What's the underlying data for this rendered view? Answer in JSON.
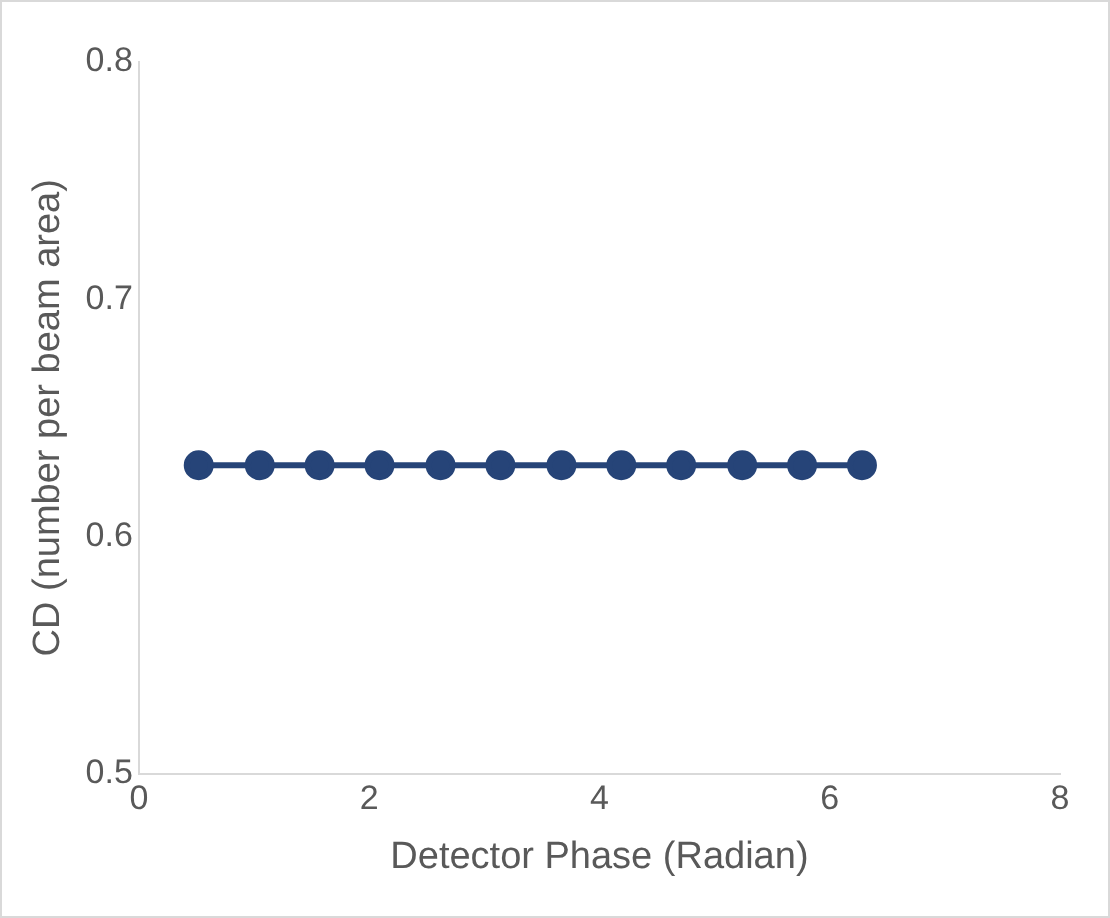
{
  "chart_data": {
    "type": "line",
    "xlabel": "Detector Phase (Radian)",
    "ylabel": "CD (number per beam area)",
    "x": [
      0.52,
      1.05,
      1.57,
      2.09,
      2.62,
      3.14,
      3.67,
      4.19,
      4.71,
      5.24,
      5.76,
      6.28
    ],
    "series": [
      {
        "color": "#264478",
        "values": [
          0.63,
          0.63,
          0.63,
          0.63,
          0.63,
          0.63,
          0.63,
          0.63,
          0.63,
          0.63,
          0.63,
          0.63
        ]
      }
    ],
    "xlim": [
      0,
      8
    ],
    "xticks": [
      0,
      2,
      4,
      6,
      8
    ],
    "ylim": [
      0.5,
      0.8
    ],
    "yticks": [
      0.5,
      0.6,
      0.7,
      0.8
    ],
    "grid": false,
    "legend": false,
    "marker": "circle",
    "line_style": "solid"
  }
}
